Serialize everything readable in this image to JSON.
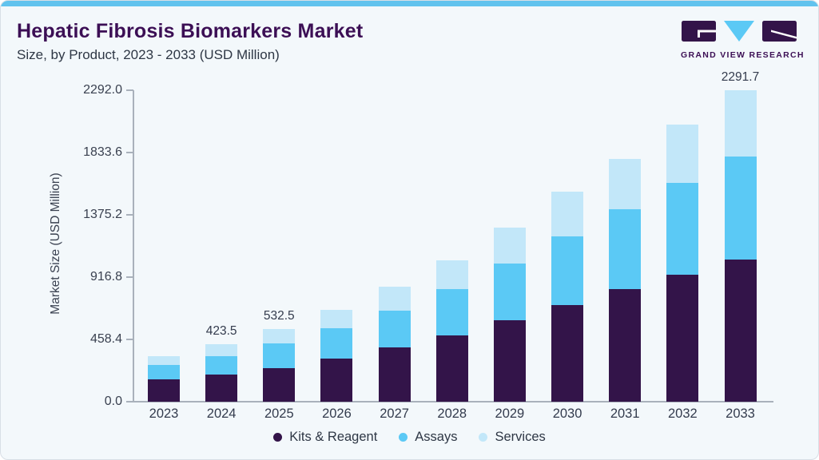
{
  "page": {
    "title": "Hepatic Fibrosis Biomarkers Market",
    "subtitle": "Size, by Product, 2023 - 2033 (USD Million)"
  },
  "logo": {
    "text": "GRAND VIEW RESEARCH"
  },
  "colors": {
    "top_accent": "#61c3ee",
    "title_purple": "#3c0f55",
    "background": "#f3f8fb",
    "axis_line": "#a9b1bb",
    "axis_text": "#3a4150",
    "kits_reagent": "#331449",
    "assays": "#5bc9f5",
    "services": "#c2e7f9"
  },
  "chart_data": {
    "type": "bar",
    "stacked": true,
    "title": "Hepatic Fibrosis Biomarkers Market Size, by Product, 2023 - 2033 (USD Million)",
    "xlabel": "",
    "ylabel": "Market Size (USD Million)",
    "ylim": [
      0,
      2292.0
    ],
    "ytick_labels": [
      "0.0",
      "458.4",
      "916.8",
      "1375.2",
      "1833.6",
      "2292.0"
    ],
    "grid": false,
    "legend_position": "bottom",
    "categories": [
      "2023",
      "2024",
      "2025",
      "2026",
      "2027",
      "2028",
      "2029",
      "2030",
      "2031",
      "2032",
      "2033"
    ],
    "series": [
      {
        "name": "Kits & Reagent",
        "key": "kits-reagent",
        "color": "#331449",
        "values": [
          162,
          202,
          247,
          318,
          399,
          490,
          599,
          713,
          827,
          934,
          1044
        ]
      },
      {
        "name": "Assays",
        "key": "assays",
        "color": "#5bc9f5",
        "values": [
          107,
          134,
          180.5,
          225,
          272,
          341,
          419,
          506,
          588,
          674,
          760
        ]
      },
      {
        "name": "Services",
        "key": "services",
        "color": "#c2e7f9",
        "values": [
          68,
          87.5,
          105,
          131,
          175,
          211,
          262,
          327,
          373,
          434,
          487.7
        ]
      }
    ],
    "totals": [
      337,
      423.5,
      532.5,
      674,
      846,
      1042,
      1280,
      1546,
      1788,
      2042,
      2291.7
    ],
    "value_labels": {
      "2024": "423.5",
      "2025": "532.5",
      "2033": "2291.7"
    }
  }
}
